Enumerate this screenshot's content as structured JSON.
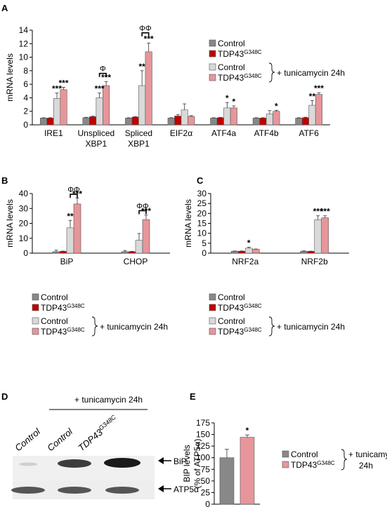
{
  "colors": {
    "control": "#888888",
    "tdp43": "#c00000",
    "control_tunic": "#d9d9d9",
    "tdp43_tunic": "#e6969a"
  },
  "legend": {
    "control": "Control",
    "tdp43_base": "TDP43",
    "tdp43_sup": "G348C",
    "treatment": "+ tunicamycin 24h",
    "treatment_e_line1": "+ tunicamycin",
    "treatment_e_line2": "24h"
  },
  "chart_data": [
    {
      "panel": "A",
      "type": "bar",
      "ylabel": "mRNA levels",
      "ylim": [
        0,
        14
      ],
      "yticks": [
        0,
        2,
        4,
        6,
        8,
        10,
        12,
        14
      ],
      "categories": [
        [
          "IRE1"
        ],
        [
          "Unspliced",
          "XBP1"
        ],
        [
          "Spliced",
          "XBP1"
        ],
        [
          "EIF2α"
        ],
        [
          "ATF4a"
        ],
        [
          "ATF4b"
        ],
        [
          "ATF6"
        ]
      ],
      "series": [
        {
          "values": [
            1.0,
            1.05,
            1.0,
            1.0,
            1.0,
            1.0,
            1.0
          ],
          "errors": [
            0.05,
            0.06,
            0.05,
            0.05,
            0.05,
            0.05,
            0.05
          ]
        },
        {
          "values": [
            1.0,
            1.2,
            1.15,
            1.3,
            1.05,
            1.0,
            1.05
          ],
          "errors": [
            0.05,
            0.08,
            0.06,
            0.2,
            0.05,
            0.05,
            0.08
          ]
        },
        {
          "values": [
            3.9,
            4.0,
            5.8,
            2.2,
            2.5,
            1.6,
            2.9
          ],
          "errors": [
            0.8,
            0.7,
            2.2,
            0.9,
            0.8,
            0.5,
            0.7
          ]
        },
        {
          "values": [
            5.2,
            5.8,
            10.8,
            1.25,
            2.5,
            2.0,
            4.5
          ],
          "errors": [
            0.35,
            0.6,
            1.3,
            0.1,
            0.3,
            0.15,
            0.25
          ]
        }
      ],
      "stars": [
        {
          "cat": 0,
          "series": 2,
          "text": "***"
        },
        {
          "cat": 0,
          "series": 3,
          "text": "***"
        },
        {
          "cat": 1,
          "series": 2,
          "text": "***"
        },
        {
          "cat": 1,
          "series": 3,
          "text": "***"
        },
        {
          "cat": 2,
          "series": 2,
          "text": "**"
        },
        {
          "cat": 2,
          "series": 3,
          "text": "***"
        },
        {
          "cat": 4,
          "series": 2,
          "text": "*"
        },
        {
          "cat": 4,
          "series": 3,
          "text": "*"
        },
        {
          "cat": 5,
          "series": 3,
          "text": "*"
        },
        {
          "cat": 6,
          "series": 2,
          "text": "**"
        },
        {
          "cat": 6,
          "series": 3,
          "text": "***"
        }
      ],
      "brackets": [
        {
          "cat": 1,
          "text": "Φ",
          "y": 7.6
        },
        {
          "cat": 2,
          "text": "ΦΦ",
          "y": 13.6
        }
      ]
    },
    {
      "panel": "B",
      "type": "bar",
      "ylabel": "mRNA levels",
      "ylim": [
        0,
        40
      ],
      "yticks": [
        0,
        10,
        20,
        30,
        40
      ],
      "categories": [
        [
          "BiP"
        ],
        [
          "CHOP"
        ]
      ],
      "series": [
        {
          "values": [
            1.0,
            1.0
          ],
          "errors": [
            1.0,
            0.8
          ]
        },
        {
          "values": [
            1.2,
            1.0
          ],
          "errors": [
            0.2,
            0.2
          ]
        },
        {
          "values": [
            17.0,
            8.7
          ],
          "errors": [
            5.0,
            4.5
          ]
        },
        {
          "values": [
            33.0,
            22.5
          ],
          "errors": [
            4.0,
            3.0
          ]
        }
      ],
      "stars": [
        {
          "cat": 0,
          "series": 2,
          "text": "**"
        },
        {
          "cat": 0,
          "series": 3,
          "text": "***"
        },
        {
          "cat": 1,
          "series": 3,
          "text": "***"
        }
      ],
      "brackets": [
        {
          "cat": 0,
          "text": "ΦΦ",
          "y": 39.5
        },
        {
          "cat": 1,
          "text": "ΦΦ",
          "y": 28.5
        }
      ]
    },
    {
      "panel": "C",
      "type": "bar",
      "ylabel": "mRNA levels",
      "ylim": [
        0,
        30
      ],
      "yticks": [
        0,
        5,
        10,
        15,
        20,
        25,
        30
      ],
      "categories": [
        [
          "NRF2a"
        ],
        [
          "NRF2b"
        ]
      ],
      "series": [
        {
          "values": [
            1.0,
            1.0
          ],
          "errors": [
            0.1,
            0.15
          ]
        },
        {
          "values": [
            1.0,
            0.9
          ],
          "errors": [
            0.1,
            0.1
          ]
        },
        {
          "values": [
            2.5,
            16.8
          ],
          "errors": [
            0.5,
            2.0
          ]
        },
        {
          "values": [
            2.0,
            17.8
          ],
          "errors": [
            0.1,
            1.0
          ]
        }
      ],
      "stars": [
        {
          "cat": 0,
          "series": 2,
          "text": "*"
        },
        {
          "cat": 1,
          "series": 2,
          "text": "***"
        },
        {
          "cat": 1,
          "series": 3,
          "text": "***"
        }
      ],
      "brackets": []
    },
    {
      "panel": "E",
      "type": "bar",
      "ylabel_line1": "BIP levels",
      "ylabel_line2": "(% of ATP5α)",
      "ylim": [
        0,
        175
      ],
      "yticks": [
        0,
        25,
        50,
        75,
        100,
        125,
        150,
        175
      ],
      "categories": [
        "Control",
        "TDP43G348C"
      ],
      "values": [
        100,
        144
      ],
      "errors": [
        18,
        5
      ],
      "stars": [
        {
          "bar": 1,
          "text": "*"
        }
      ]
    }
  ],
  "blot": {
    "header": "+ tunicamycin 24h",
    "lanes": [
      "Control",
      "Control",
      "TDP43"
    ],
    "lane3_sup": "G348C",
    "band_labels": [
      "BiP",
      "ATP5α"
    ]
  },
  "panel_labels": [
    "A",
    "B",
    "C",
    "D",
    "E"
  ]
}
